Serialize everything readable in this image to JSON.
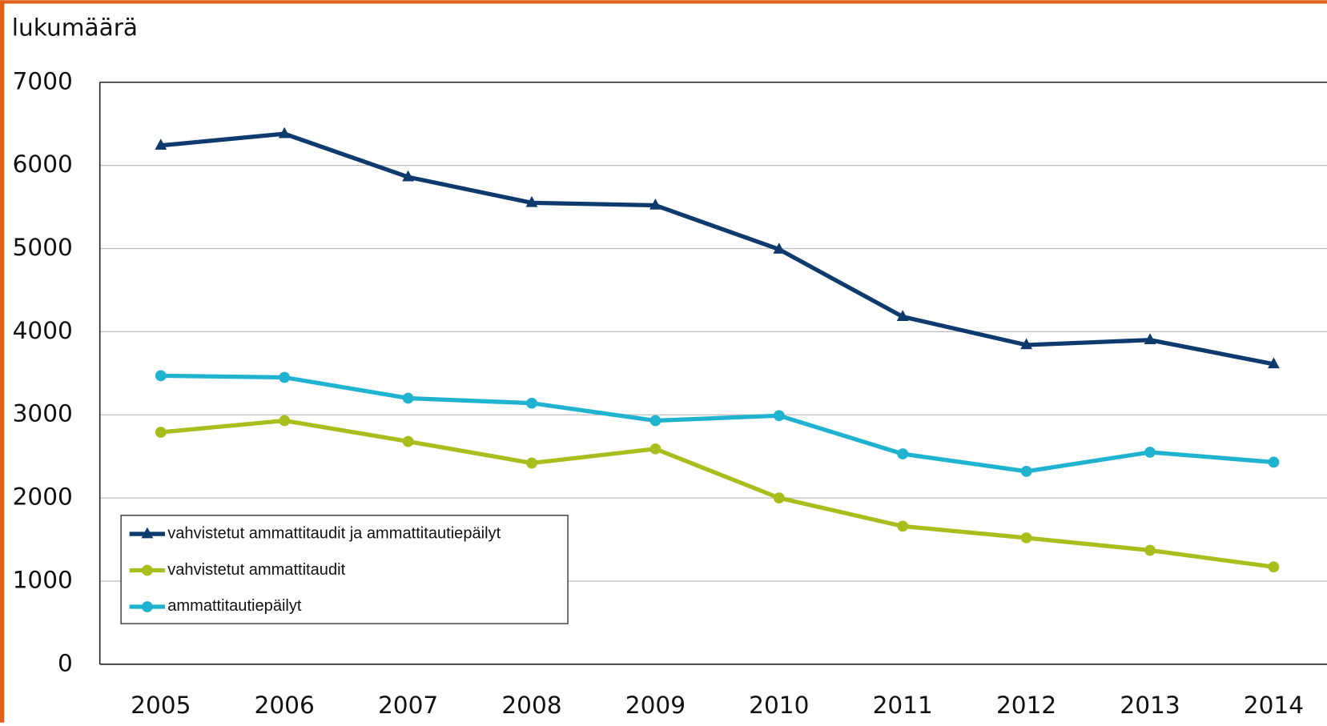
{
  "chart_data": {
    "type": "line",
    "ylabel": "lukumäärä",
    "categories": [
      "2005",
      "2006",
      "2007",
      "2008",
      "2009",
      "2010",
      "2011",
      "2012",
      "2013",
      "2014"
    ],
    "series": [
      {
        "name": "vahvistetut ammattitaudit ja ammattitautiepäilyt",
        "color": "#0f3a6e",
        "marker": "triangle",
        "values": [
          6240,
          6380,
          5860,
          5550,
          5520,
          4990,
          4180,
          3840,
          3900,
          3610
        ]
      },
      {
        "name": "vahvistetut ammattitaudit",
        "color": "#a9bd1c",
        "marker": "circle",
        "values": [
          2790,
          2930,
          2680,
          2420,
          2590,
          2000,
          1660,
          1520,
          1370,
          1170
        ]
      },
      {
        "name": "ammattitautiepäilyt",
        "color": "#1fb3cf",
        "marker": "circle",
        "values": [
          3470,
          3450,
          3200,
          3140,
          2930,
          2990,
          2530,
          2320,
          2550,
          2430
        ]
      }
    ],
    "ylim": [
      0,
      7000
    ],
    "yticks": [
      0,
      1000,
      2000,
      3000,
      4000,
      5000,
      6000,
      7000
    ],
    "grid": true,
    "legend": "lower left"
  }
}
